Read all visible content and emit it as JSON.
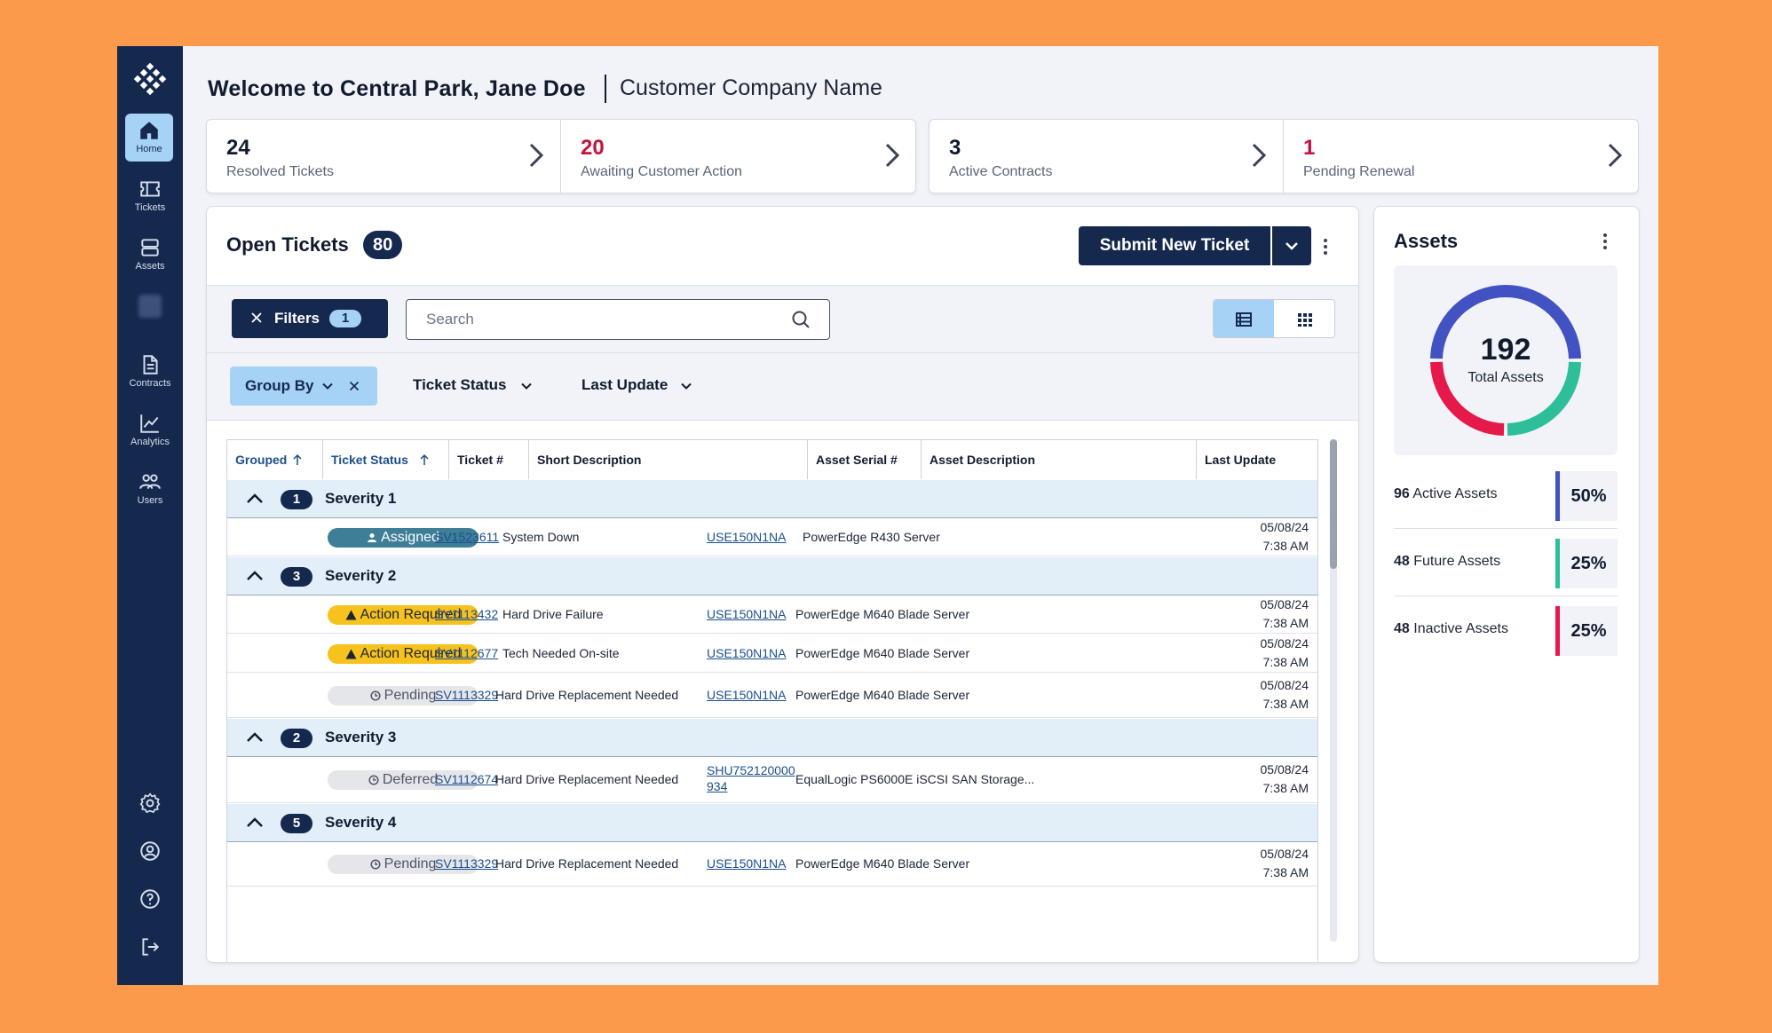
{
  "sidebar": {
    "items": [
      {
        "label": "Home",
        "icon": "home-icon"
      },
      {
        "label": "Tickets",
        "icon": "ticket-icon"
      },
      {
        "label": "Assets",
        "icon": "server-icon"
      },
      {
        "label": "",
        "icon": "blurred-icon"
      },
      {
        "label": "Contracts",
        "icon": "document-icon"
      },
      {
        "label": "Analytics",
        "icon": "chart-icon"
      },
      {
        "label": "Users",
        "icon": "users-icon"
      }
    ],
    "bottom_icons": [
      "gear-icon",
      "user-circle-icon",
      "help-icon",
      "logout-icon"
    ]
  },
  "header": {
    "welcome": "Welcome to Central Park, Jane Doe",
    "company": "Customer Company Name"
  },
  "stats": [
    {
      "value": "24",
      "label": "Resolved Tickets",
      "color": "#111B2E"
    },
    {
      "value": "20",
      "label": "Awaiting Customer Action",
      "color": "#C5123D"
    },
    {
      "value": "3",
      "label": "Active Contracts",
      "color": "#111B2E"
    },
    {
      "value": "1",
      "label": "Pending Renewal",
      "color": "#C5123D"
    }
  ],
  "open_tickets": {
    "title": "Open Tickets",
    "count": "80",
    "submit_label": "Submit New Ticket",
    "filters_label": "Filters",
    "filters_count": "1",
    "search_placeholder": "Search",
    "group_by_label": "Group By",
    "dropdowns": [
      "Ticket Status",
      "Last Update"
    ]
  },
  "table": {
    "headers": [
      "Grouped",
      "Ticket Status",
      "Ticket #",
      "Short Description",
      "Asset Serial #",
      "Asset Description",
      "Last Update"
    ],
    "groups": [
      {
        "count": "1",
        "label": "Severity 1",
        "rows": [
          {
            "status": "Assigned",
            "status_type": "assigned",
            "ticket": "SV1523611",
            "desc": "System Down",
            "serial": "USE150N1NA",
            "serial2": "",
            "asset": "PowerEdge R430 Server",
            "date": "05/08/24",
            "time": "7:38 AM"
          }
        ]
      },
      {
        "count": "3",
        "label": "Severity 2",
        "rows": [
          {
            "status": "Action Required",
            "status_type": "action",
            "ticket": "SV1113432",
            "desc": "Hard Drive Failure",
            "serial": "USE150N1NA",
            "serial2": "",
            "asset": "PowerEdge M640 Blade Server",
            "date": "05/08/24",
            "time": "7:38 AM"
          },
          {
            "status": "Action Required",
            "status_type": "action",
            "ticket": "SV1112677",
            "desc": "Tech Needed On-site",
            "serial": "USE150N1NA",
            "serial2": "",
            "asset": "PowerEdge M640 Blade Server",
            "date": "05/08/24",
            "time": "7:38 AM"
          },
          {
            "status": "Pending",
            "status_type": "pending",
            "ticket": "SV1113329",
            "desc": "Hard Drive Replacement Needed",
            "serial": "USE150N1NA",
            "serial2": "",
            "asset": "PowerEdge M640 Blade Server",
            "date": "05/08/24",
            "time": "7:38 AM"
          }
        ]
      },
      {
        "count": "2",
        "label": "Severity 3",
        "rows": [
          {
            "status": "Deferred",
            "status_type": "pending",
            "ticket": "SV1112674",
            "desc": "Hard Drive Replacement Needed",
            "serial": "SHU752120000",
            "serial2": "934",
            "asset": "EqualLogic PS6000E iSCSI SAN Storage...",
            "date": "05/08/24",
            "time": "7:38 AM"
          }
        ]
      },
      {
        "count": "5",
        "label": "Severity 4",
        "rows": [
          {
            "status": "Pending",
            "status_type": "pending",
            "ticket": "SV1113329",
            "desc": "Hard Drive Replacement Needed",
            "serial": "USE150N1NA",
            "serial2": "",
            "asset": "PowerEdge M640 Blade Server",
            "date": "05/08/24",
            "time": "7:38 AM"
          }
        ]
      }
    ]
  },
  "assets": {
    "title": "Assets",
    "total": "192",
    "total_label": "Total Assets",
    "rows": [
      {
        "count": "96",
        "label": "Active Assets",
        "percent": "50%",
        "color": "#4252C2"
      },
      {
        "count": "48",
        "label": "Future Assets",
        "percent": "25%",
        "color": "#2EBE9A"
      },
      {
        "count": "48",
        "label": "Inactive Assets",
        "percent": "25%",
        "color": "#E5194A"
      }
    ]
  }
}
